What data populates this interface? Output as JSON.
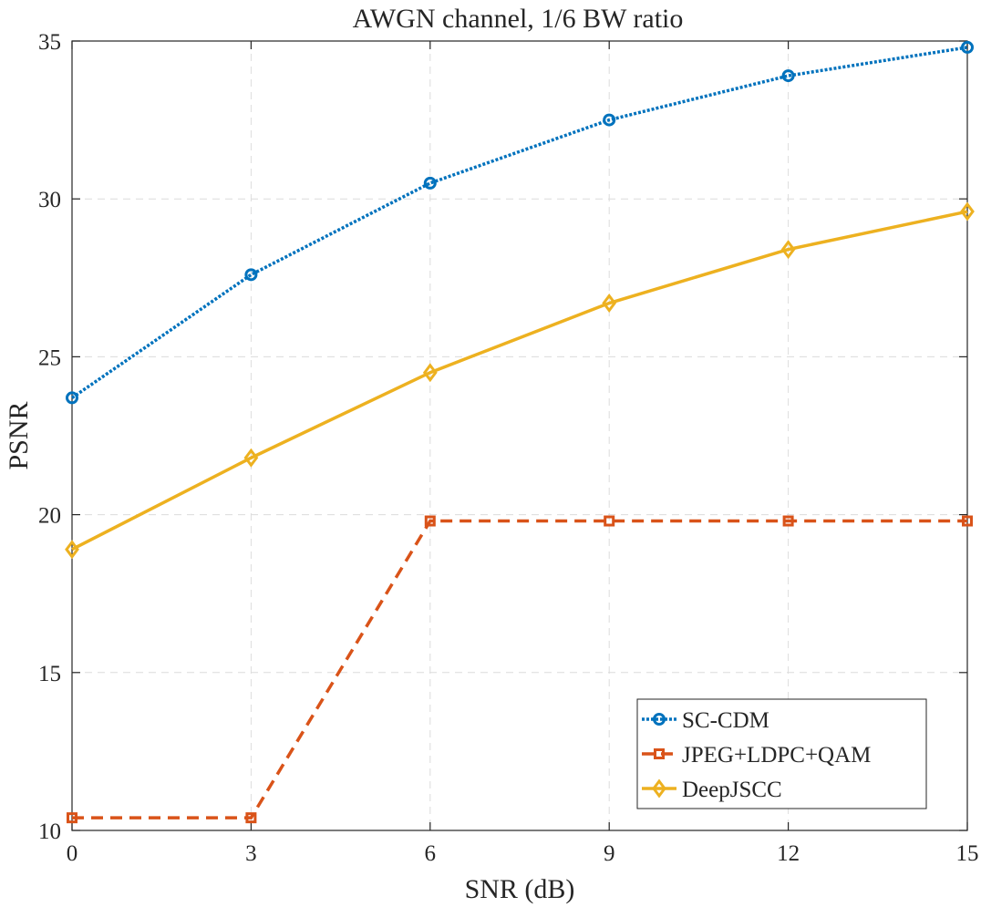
{
  "chart_data": {
    "type": "line",
    "title": "AWGN channel, 1/6 BW ratio",
    "xlabel": "SNR (dB)",
    "ylabel": "PSNR",
    "x": [
      0,
      3,
      6,
      9,
      12,
      15
    ],
    "xlim": [
      0,
      15
    ],
    "ylim": [
      10,
      35
    ],
    "xticks": [
      0,
      3,
      6,
      9,
      12,
      15
    ],
    "yticks": [
      10,
      15,
      20,
      25,
      30,
      35
    ],
    "grid": true,
    "legend_position": "bottom-right",
    "series": [
      {
        "name": "SC-CDM",
        "values": [
          23.7,
          27.6,
          30.5,
          32.5,
          33.9,
          34.8
        ],
        "color": "#0072BD",
        "line_style": "dotted",
        "marker": "circle"
      },
      {
        "name": "JPEG+LDPC+QAM",
        "values": [
          10.4,
          10.4,
          19.8,
          19.8,
          19.8,
          19.8
        ],
        "color": "#D95319",
        "line_style": "dashed",
        "marker": "square"
      },
      {
        "name": "DeepJSCC",
        "values": [
          18.9,
          21.8,
          24.5,
          26.7,
          28.4,
          29.6
        ],
        "color": "#EDB120",
        "line_style": "solid",
        "marker": "diamond"
      }
    ]
  }
}
